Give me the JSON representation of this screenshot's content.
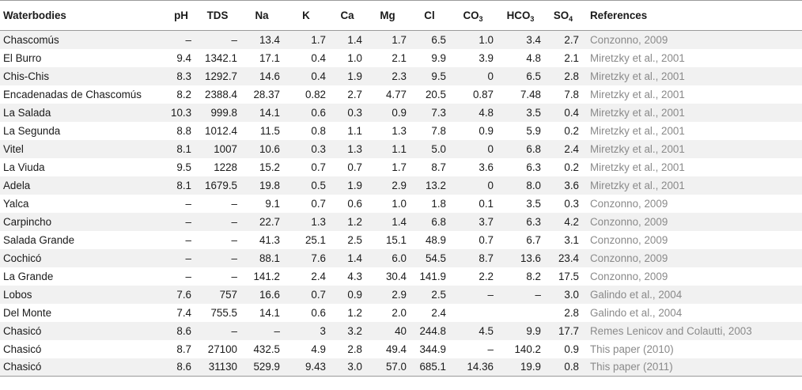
{
  "table": {
    "headers": {
      "waterbodies": "Waterbodies",
      "ph": "pH",
      "tds": "TDS",
      "na": "Na",
      "k": "K",
      "ca": "Ca",
      "mg": "Mg",
      "cl": "Cl",
      "co3_base": "CO",
      "co3_sub": "3",
      "hco3_base": "HCO",
      "hco3_sub": "3",
      "so4_base": "SO",
      "so4_sub": "4",
      "references": "References"
    },
    "rows": [
      [
        "Chascomús",
        "–",
        "–",
        "13.4",
        "1.7",
        "1.4",
        "1.7",
        "6.5",
        "1.0",
        "3.4",
        "2.7",
        "Conzonno, 2009"
      ],
      [
        "El Burro",
        "9.4",
        "1342.1",
        "17.1",
        "0.4",
        "1.0",
        "2.1",
        "9.9",
        "3.9",
        "4.8",
        "2.1",
        "Miretzky et al., 2001"
      ],
      [
        "Chis-Chis",
        "8.3",
        "1292.7",
        "14.6",
        "0.4",
        "1.9",
        "2.3",
        "9.5",
        "0",
        "6.5",
        "2.8",
        "Miretzky et al., 2001"
      ],
      [
        "Encadenadas de Chascomús",
        "8.2",
        "2388.4",
        "28.37",
        "0.82",
        "2.7",
        "4.77",
        "20.5",
        "0.87",
        "7.48",
        "7.8",
        "Miretzky et al., 2001"
      ],
      [
        "La Salada",
        "10.3",
        "999.8",
        "14.1",
        "0.6",
        "0.3",
        "0.9",
        "7.3",
        "4.8",
        "3.5",
        "0.4",
        "Miretzky et al., 2001"
      ],
      [
        "La Segunda",
        "8.8",
        "1012.4",
        "11.5",
        "0.8",
        "1.1",
        "1.3",
        "7.8",
        "0.9",
        "5.9",
        "0.2",
        "Miretzky et al., 2001"
      ],
      [
        "Vitel",
        "8.1",
        "1007",
        "10.6",
        "0.3",
        "1.3",
        "1.1",
        "5.0",
        "0",
        "6.8",
        "2.4",
        "Miretzky et al., 2001"
      ],
      [
        "La Viuda",
        "9.5",
        "1228",
        "15.2",
        "0.7",
        "0.7",
        "1.7",
        "8.7",
        "3.6",
        "6.3",
        "0.2",
        "Miretzky et al., 2001"
      ],
      [
        "Adela",
        "8.1",
        "1679.5",
        "19.8",
        "0.5",
        "1.9",
        "2.9",
        "13.2",
        "0",
        "8.0",
        "3.6",
        "Miretzky et al., 2001"
      ],
      [
        "Yalca",
        "–",
        "–",
        "9.1",
        "0.7",
        "0.6",
        "1.0",
        "1.8",
        "0.1",
        "3.5",
        "0.3",
        "Conzonno, 2009"
      ],
      [
        "Carpincho",
        "–",
        "–",
        "22.7",
        "1.3",
        "1.2",
        "1.4",
        "6.8",
        "3.7",
        "6.3",
        "4.2",
        "Conzonno, 2009"
      ],
      [
        "Salada Grande",
        "–",
        "–",
        "41.3",
        "25.1",
        "2.5",
        "15.1",
        "48.9",
        "0.7",
        "6.7",
        "3.1",
        "Conzonno, 2009"
      ],
      [
        "Cochicó",
        "–",
        "–",
        "88.1",
        "7.6",
        "1.4",
        "6.0",
        "54.5",
        "8.7",
        "13.6",
        "23.4",
        "Conzonno, 2009"
      ],
      [
        "La Grande",
        "–",
        "–",
        "141.2",
        "2.4",
        "4.3",
        "30.4",
        "141.9",
        "2.2",
        "8.2",
        "17.5",
        "Conzonno, 2009"
      ],
      [
        "Lobos",
        "7.6",
        "757",
        "16.6",
        "0.7",
        "0.9",
        "2.9",
        "2.5",
        "–",
        "–",
        "3.0",
        "Galindo et al., 2004"
      ],
      [
        "Del Monte",
        "7.4",
        "755.5",
        "14.1",
        "0.6",
        "1.2",
        "2.0",
        "2.4",
        "",
        "",
        "2.8",
        "Galindo et al., 2004"
      ],
      [
        "Chasicó",
        "8.6",
        "–",
        "–",
        "3",
        "3.2",
        "40",
        "244.8",
        "4.5",
        "9.9",
        "17.7",
        "Remes Lenicov and Colautti, 2003"
      ],
      [
        "Chasicó",
        "8.7",
        "27100",
        "432.5",
        "4.9",
        "2.8",
        "49.4",
        "344.9",
        "–",
        "140.2",
        "0.9",
        "This paper (2010)"
      ],
      [
        "Chasicó",
        "8.6",
        "31130",
        "529.9",
        "9.43",
        "3.0",
        "57.0",
        "685.1",
        "14.36",
        "19.9",
        "0.8",
        "This paper (2011)"
      ]
    ]
  }
}
